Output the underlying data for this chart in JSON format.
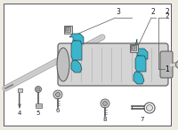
{
  "bg_color": "#ede9e3",
  "border_color": "#888888",
  "highlight_color": "#3ab5cc",
  "line_color": "#555555",
  "gray_light": "#d4d4d4",
  "gray_mid": "#aaaaaa",
  "gray_dark": "#888888",
  "dark_color": "#222222",
  "white": "#ffffff",
  "figsize": [
    2.0,
    1.47
  ],
  "dpi": 100
}
